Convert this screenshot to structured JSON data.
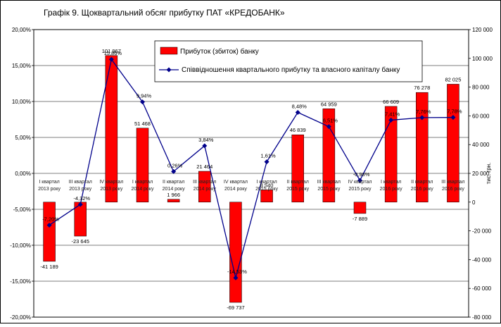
{
  "chart_data": {
    "type": "bar+line",
    "title": "Графік 9. Щоквартальний обсяг прибутку ПАТ «КРЕДОБАНК»",
    "categories": [
      [
        "I квартал",
        "2013 року"
      ],
      [
        "III квартал",
        "2013 року"
      ],
      [
        "IV квартал",
        "2013 року"
      ],
      [
        "I квартал",
        "2014 року"
      ],
      [
        "II квартал",
        "2014 року"
      ],
      [
        "III квартал",
        "2014 року"
      ],
      [
        "IV квартал",
        "2014 року"
      ],
      [
        "I квартал",
        "2015 року"
      ],
      [
        "II квартал",
        "2015 року"
      ],
      [
        "III квартал",
        "2015 року"
      ],
      [
        "IV квартал",
        "2015 року"
      ],
      [
        "I квартал",
        "2016 року"
      ],
      [
        "II квартал",
        "2016 року"
      ],
      [
        "III квартал",
        "2016 року"
      ]
    ],
    "series": [
      {
        "name": "Прибуток (збиток)  банку",
        "type": "bar",
        "axis": "right",
        "color": "#ff0000",
        "values": [
          -41189,
          -23645,
          101967,
          51468,
          1966,
          21464,
          -69737,
          8540,
          46839,
          64959,
          -7889,
          66609,
          76278,
          82025
        ],
        "labels": [
          "-41 189",
          "-23 645",
          "101 967",
          "51 468",
          "1 966",
          "21 464",
          "-69 737",
          "8 540",
          "46 839",
          "64 959",
          "-7 889",
          "66 609",
          "76 278",
          "82 025"
        ]
      },
      {
        "name": "Співвідношення квартального прибутку та власного капіталу банку",
        "type": "line",
        "axis": "left",
        "color": "#00008b",
        "values": [
          -7.2,
          -4.32,
          15.86,
          9.94,
          0.26,
          3.84,
          -14.53,
          1.61,
          8.48,
          6.51,
          -0.98,
          7.41,
          7.76,
          7.78
        ],
        "labels": [
          "-7,20%",
          "-4,32%",
          "15,86%",
          "9,94%",
          "0,26%",
          "3,84%",
          "-14,53%",
          "1,61%",
          "8,48%",
          "6,51%",
          "-0,98%",
          "7,41%",
          "7,76%",
          "7,78%"
        ]
      }
    ],
    "left_axis": {
      "min": -20,
      "max": 20,
      "step": 5,
      "tick_labels": [
        "-20,00%",
        "-15,00%",
        "-10,00%",
        "-5,00%",
        "0,00%",
        "5,00%",
        "10,00%",
        "15,00%",
        "20,00%"
      ]
    },
    "right_axis": {
      "label": "тис. грн.",
      "min": -80000,
      "max": 120000,
      "step": 20000,
      "tick_labels": [
        "-80 000",
        "-60 000",
        "-40 000",
        "-20 000",
        "0",
        "20 000",
        "40 000",
        "60 000",
        "80 000",
        "100 000",
        "120 000"
      ]
    },
    "grid": true,
    "legend_position": "top-center"
  }
}
